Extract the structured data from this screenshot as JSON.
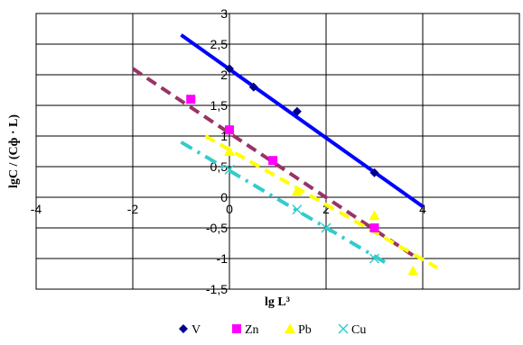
{
  "chart_data": {
    "type": "scatter",
    "xlabel": "lg L³",
    "ylabel": "lgC / (Cф · L)",
    "xlim": [
      -4,
      6
    ],
    "ylim": [
      -1.5,
      3
    ],
    "x_ticks": [
      "-4",
      "-2",
      "0",
      "2",
      "4"
    ],
    "y_ticks": [
      "3",
      "2,5",
      "2",
      "1,5",
      "1",
      "0,5",
      "0",
      "-0,5",
      "-1",
      "-1,5"
    ],
    "grid": true,
    "legend_position": "bottom",
    "series": [
      {
        "name": "V",
        "color": "#00008B",
        "marker": "diamond",
        "points": [
          [
            0,
            2.1
          ],
          [
            0.5,
            1.8
          ],
          [
            1.4,
            1.4
          ],
          [
            3,
            0.4
          ]
        ],
        "trendline": {
          "color": "#0000FF",
          "style": "solid",
          "from": [
            -1.0,
            2.65
          ],
          "to": [
            4.0,
            -0.15
          ]
        }
      },
      {
        "name": "Zn",
        "color": "#FF00FF",
        "marker": "square",
        "points": [
          [
            -0.8,
            1.6
          ],
          [
            0,
            1.1
          ],
          [
            0.9,
            0.6
          ],
          [
            3,
            -0.5
          ]
        ],
        "trendline": {
          "color": "#993366",
          "style": "dashed",
          "from": [
            -2.0,
            2.1
          ],
          "to": [
            3.8,
            -0.95
          ]
        }
      },
      {
        "name": "Pb",
        "color": "#FFFF00",
        "marker": "triangle",
        "points": [
          [
            0,
            0.75
          ],
          [
            1.4,
            0.1
          ],
          [
            3,
            -0.3
          ],
          [
            3.8,
            -1.2
          ]
        ],
        "trendline": {
          "color": "#FFFF00",
          "style": "dashed",
          "from": [
            -0.5,
            1.0
          ],
          "to": [
            4.3,
            -1.15
          ]
        }
      },
      {
        "name": "Cu",
        "color": "#33CCCC",
        "marker": "x",
        "points": [
          [
            0,
            0.45
          ],
          [
            1.4,
            -0.2
          ],
          [
            2,
            -0.5
          ],
          [
            3,
            -1.0
          ]
        ],
        "trendline": {
          "color": "#33CCCC",
          "style": "dashdot",
          "from": [
            -1.0,
            0.9
          ],
          "to": [
            3.3,
            -1.1
          ]
        }
      }
    ]
  }
}
